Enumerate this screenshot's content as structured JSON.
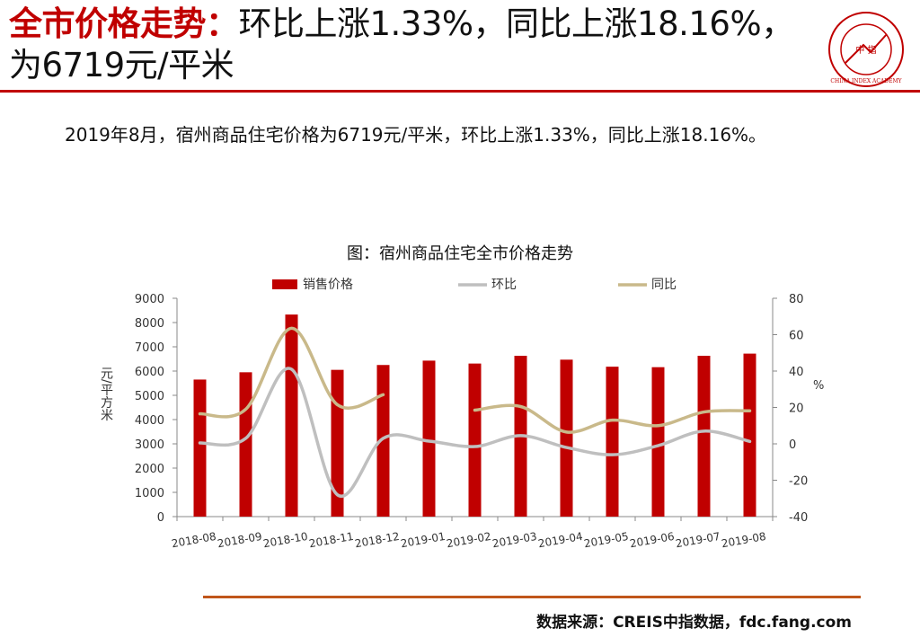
{
  "header": {
    "title_highlight": "全市价格走势：",
    "title_rest": "环比上涨1.33%，同比上涨18.16%，为6719元/平米",
    "logo_text": "中 指",
    "logo_ring_text": "CHINA INDEX ACADEMY"
  },
  "summary": "2019年8月，宿州商品住宅价格为6719元/平米，环比上涨1.33%，同比上涨18.16%。",
  "chart_title": "图：宿州商品住宅全市价格走势",
  "source": "数据来源：CREIS中指数据，fdc.fang.com",
  "colors": {
    "bar": "#c00000",
    "mom": "#bfbfbf",
    "yoy": "#c9b98a",
    "accent": "#c00000"
  },
  "chart_data": {
    "type": "bar",
    "title": "图：宿州商品住宅全市价格走势",
    "categories": [
      "2018-08",
      "2018-09",
      "2018-10",
      "2018-11",
      "2018-12",
      "2019-01",
      "2019-02",
      "2019-03",
      "2019-04",
      "2019-05",
      "2019-06",
      "2019-07",
      "2019-08"
    ],
    "ylabel": "元/平方米",
    "y2label": "%",
    "ylim": [
      0,
      9000
    ],
    "y2lim": [
      -40,
      80
    ],
    "yticks": [
      "0",
      "1000",
      "2000",
      "3000",
      "4000",
      "5000",
      "6000",
      "7000",
      "8000",
      "9000"
    ],
    "y2ticks": [
      "-40",
      "-20",
      "0",
      "20",
      "40",
      "60",
      "80"
    ],
    "legend_position": "top",
    "grid": false,
    "series": [
      {
        "name": "销售价格",
        "type": "bar",
        "axis": "left",
        "values": [
          5650,
          5950,
          8330,
          6050,
          6250,
          6430,
          6310,
          6630,
          6470,
          6180,
          6160,
          6630,
          6719
        ]
      },
      {
        "name": "环比",
        "type": "line",
        "axis": "right",
        "values": [
          0.5,
          3,
          41,
          -28,
          3,
          1.5,
          -1.5,
          4.5,
          -2,
          -6,
          -1,
          7,
          1.33
        ]
      },
      {
        "name": "同比",
        "type": "line",
        "axis": "right",
        "values": [
          16.5,
          19,
          63.5,
          21.5,
          27,
          null,
          18.5,
          20.5,
          6.5,
          13,
          10,
          17.5,
          18.16
        ]
      }
    ]
  }
}
